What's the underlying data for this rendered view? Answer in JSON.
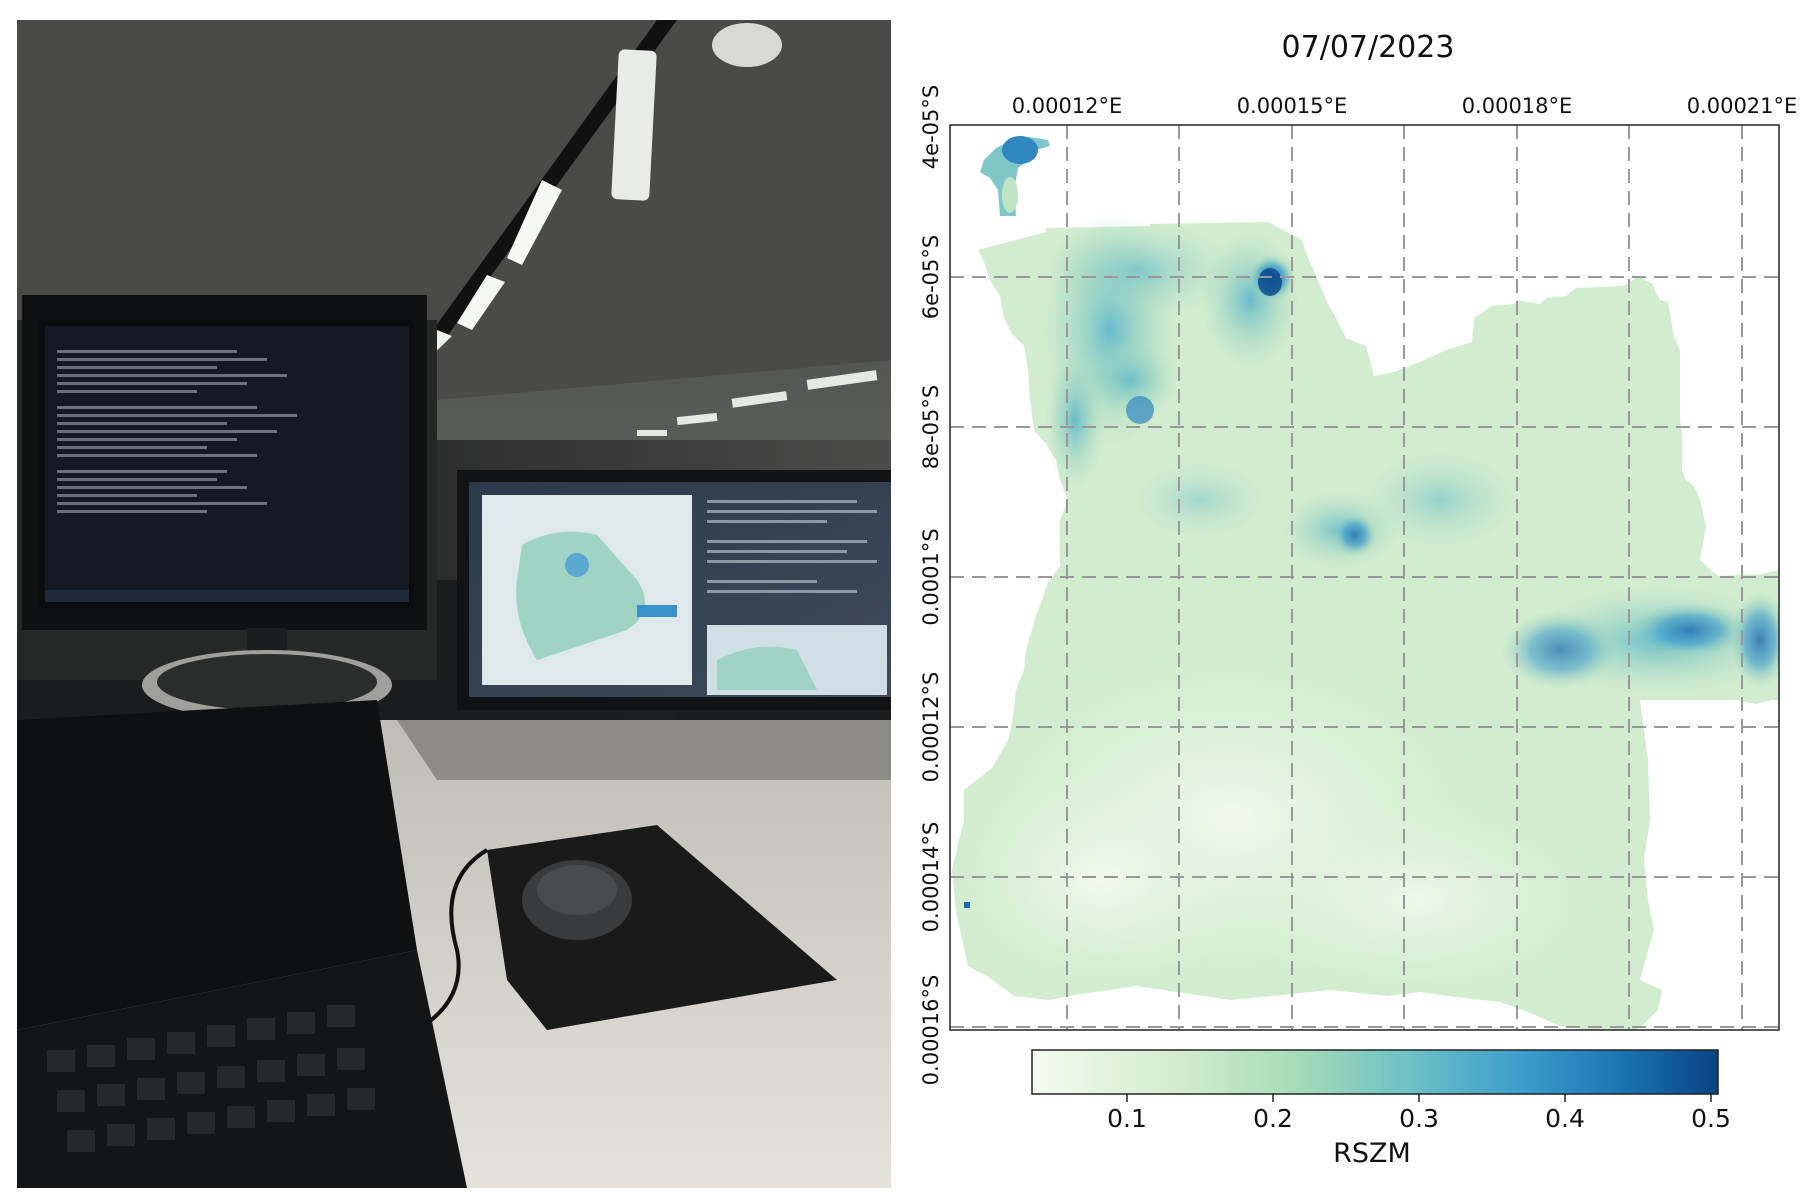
{
  "chart_data": {
    "type": "heatmap",
    "title": "07/07/2023",
    "x_ticks": [
      "0.00012°E",
      "0.00015°E",
      "0.00018°E",
      "0.00021°E"
    ],
    "y_ticks": [
      "4e-05°S",
      "6e-05°S",
      "8e-05°S",
      "0.0001°S",
      "0.00012°S",
      "0.00014°S",
      "0.00016°S"
    ],
    "colorbar": {
      "label": "RSZM",
      "ticks": [
        "0.1",
        "0.2",
        "0.3",
        "0.4",
        "0.5"
      ],
      "range": [
        0.03,
        0.5
      ],
      "colormap": "GnBu"
    },
    "grid": true,
    "grid_style": "dashed gray"
  }
}
